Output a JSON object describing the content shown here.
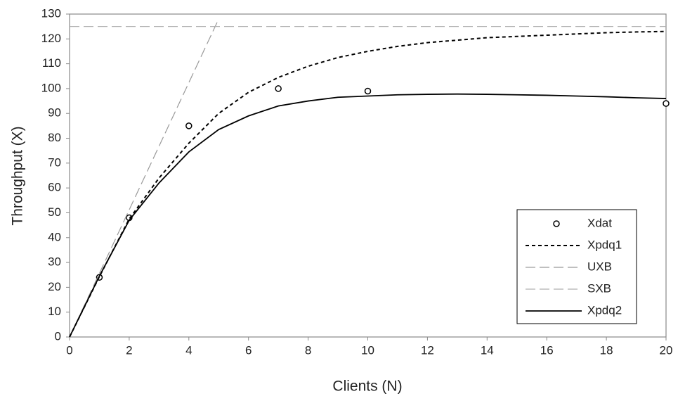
{
  "chart_data": {
    "type": "line",
    "x_label": "Clients (N)",
    "y_label": "Throughput (X)",
    "xlim": [
      0,
      20
    ],
    "xticks": [
      0,
      2,
      4,
      6,
      8,
      10,
      12,
      14,
      16,
      18,
      20
    ],
    "ylim": [
      0,
      130
    ],
    "yticks": [
      0,
      10,
      20,
      30,
      40,
      50,
      60,
      70,
      80,
      90,
      100,
      110,
      120,
      130
    ],
    "grid": false,
    "legend": "lower right",
    "series": [
      {
        "name": "Xdat",
        "color": "#000000",
        "style": "markers",
        "x": [
          1,
          2,
          4,
          7,
          10,
          20
        ],
        "values": [
          24,
          48,
          85,
          100,
          99,
          94
        ]
      },
      {
        "name": "Xpdq1",
        "color": "#000000",
        "style": "dashed",
        "x": [
          0,
          1,
          2,
          3,
          4,
          5,
          6,
          7,
          8,
          9,
          10,
          11,
          12,
          13,
          14,
          15,
          16,
          17,
          18,
          19,
          20
        ],
        "values": [
          0,
          24.3,
          47.5,
          64,
          78,
          90,
          98.5,
          104.5,
          109,
          112.5,
          115,
          117,
          118.5,
          119.5,
          120.5,
          121,
          121.5,
          122,
          122.5,
          122.8,
          123
        ]
      },
      {
        "name": "UXB",
        "color": "#999999",
        "style": "longdash",
        "x": [
          0,
          5
        ],
        "values": [
          0,
          128
        ]
      },
      {
        "name": "SXB",
        "color": "#b0b0b0",
        "style": "longdash",
        "x": [
          0,
          20
        ],
        "values": [
          125,
          125
        ]
      },
      {
        "name": "Xpdq2",
        "color": "#000000",
        "style": "solid",
        "x": [
          0,
          1,
          2,
          3,
          4,
          5,
          6,
          7,
          8,
          9,
          10,
          11,
          12,
          13,
          14,
          15,
          16,
          17,
          18,
          19,
          20
        ],
        "values": [
          0,
          24.5,
          47,
          62,
          74.5,
          83.5,
          89,
          93,
          95,
          96.5,
          97,
          97.5,
          97.7,
          97.8,
          97.7,
          97.5,
          97.3,
          97,
          96.7,
          96.3,
          96
        ]
      }
    ]
  }
}
